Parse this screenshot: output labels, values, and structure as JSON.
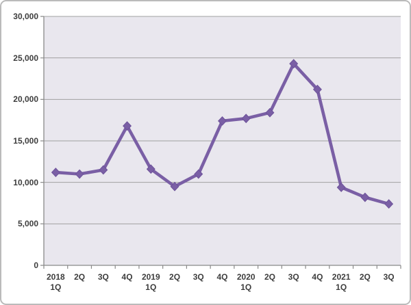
{
  "chart_data": {
    "type": "line",
    "title": "",
    "xlabel": "",
    "ylabel": "",
    "categories": [
      "2018 1Q",
      "2018 2Q",
      "2018 3Q",
      "2018 4Q",
      "2019 1Q",
      "2019 2Q",
      "2019 3Q",
      "2019 4Q",
      "2020 1Q",
      "2020 2Q",
      "2020 3Q",
      "2020 4Q",
      "2021 1Q",
      "2021 2Q",
      "2021 3Q"
    ],
    "values": [
      11200,
      11000,
      11500,
      16800,
      11600,
      9500,
      11000,
      17400,
      17700,
      18400,
      24300,
      21200,
      9400,
      8200,
      7400
    ],
    "ylim": [
      0,
      30000
    ],
    "ytick_interval": 5000,
    "ytick_labels": [
      "0",
      "5,000",
      "10,000",
      "15,000",
      "20,000",
      "25,000",
      "30,000"
    ],
    "xtick_labels": [
      [
        "2018",
        "1Q"
      ],
      [
        "2Q"
      ],
      [
        "3Q"
      ],
      [
        "4Q"
      ],
      [
        "2019",
        "1Q"
      ],
      [
        "2Q"
      ],
      [
        "3Q"
      ],
      [
        "4Q"
      ],
      [
        "2020",
        "1Q"
      ],
      [
        "2Q"
      ],
      [
        "3Q"
      ],
      [
        "4Q"
      ],
      [
        "2021",
        "1Q"
      ],
      [
        "2Q"
      ],
      [
        "3Q"
      ]
    ],
    "grid": true,
    "legend_position": "none",
    "marker": "diamond"
  },
  "colors": {
    "series": "#7a5fa5",
    "series_edge": "#6d529a",
    "plot_background": "#e9e7ee",
    "gridline": "#a0a0a0",
    "axis": "#898989",
    "tick_label": "#3d3d3d",
    "frame_border": "#bababa",
    "background": "#ffffff"
  }
}
